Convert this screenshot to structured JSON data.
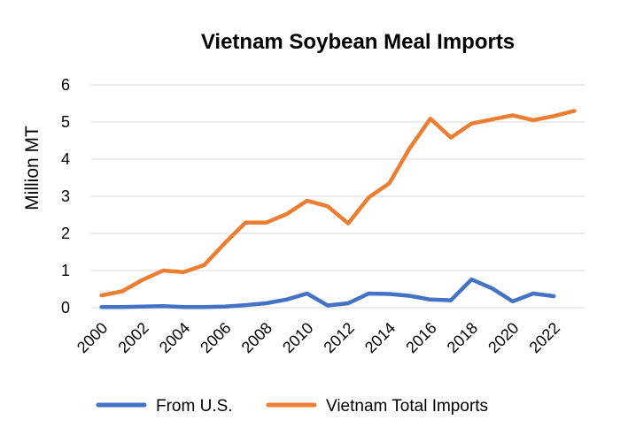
{
  "chart_data": {
    "type": "line",
    "title": "Vietnam Soybean Meal Imports",
    "xlabel": "",
    "ylabel": "Million MT",
    "ylim": [
      0,
      6
    ],
    "yticks": [
      "0",
      "1",
      "2",
      "3",
      "4",
      "5",
      "6"
    ],
    "xticks": [
      "2000",
      "2002",
      "2004",
      "2006",
      "2008",
      "2010",
      "2012",
      "2014",
      "2016",
      "2018",
      "2020",
      "2022"
    ],
    "x": [
      2000,
      2001,
      2002,
      2003,
      2004,
      2005,
      2006,
      2007,
      2008,
      2009,
      2010,
      2011,
      2012,
      2013,
      2014,
      2015,
      2016,
      2017,
      2018,
      2019,
      2020,
      2021,
      2022,
      2023
    ],
    "grid": true,
    "legend_position": "bottom",
    "series": [
      {
        "name": "From U.S.",
        "color": "#4472c4",
        "values": [
          0.02,
          0.02,
          0.03,
          0.04,
          0.02,
          0.02,
          0.03,
          0.07,
          0.12,
          0.22,
          0.38,
          0.06,
          0.12,
          0.38,
          0.37,
          0.32,
          0.22,
          0.2,
          0.76,
          0.52,
          0.17,
          0.38,
          0.31,
          null
        ]
      },
      {
        "name": "Vietnam Total Imports",
        "color": "#ed7d31",
        "values": [
          0.33,
          0.44,
          0.75,
          1.0,
          0.96,
          1.15,
          1.74,
          2.29,
          2.29,
          2.52,
          2.88,
          2.73,
          2.27,
          2.97,
          3.35,
          4.3,
          5.09,
          4.58,
          4.96,
          5.07,
          5.18,
          5.05,
          5.16,
          5.3
        ]
      }
    ]
  }
}
